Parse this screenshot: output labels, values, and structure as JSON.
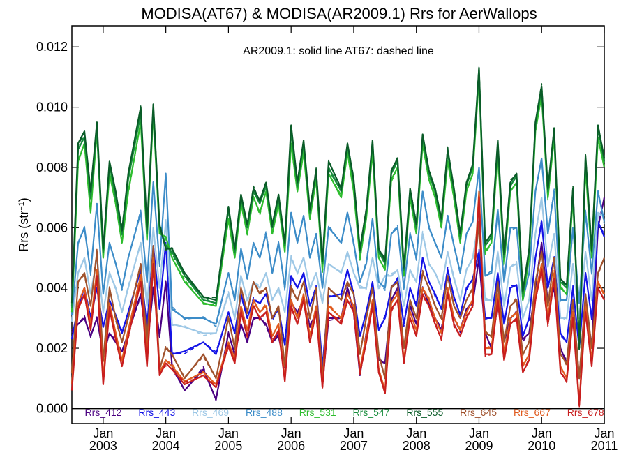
{
  "chart_data": {
    "type": "line",
    "title": "MODISA(AT67) & MODISA(AR2009.1)  Rrs for AerWallops",
    "ylabel_base": "Rrs (str",
    "ylabel_sup": "−1",
    "ylabel_close": ")",
    "annotation": "AR2009.1: solid line   AT67: dashed line",
    "xlim": [
      2002.5,
      2011.0
    ],
    "ylim": [
      -0.0005,
      0.0127
    ],
    "yticks": [
      0.0,
      0.002,
      0.004,
      0.006,
      0.008,
      0.01,
      0.012
    ],
    "ytick_labels": [
      "0.000",
      "0.002",
      "0.004",
      "0.006",
      "0.008",
      "0.010",
      "0.012"
    ],
    "xticks": [
      {
        "value": 2003,
        "line1": "Jan",
        "line2": "2003"
      },
      {
        "value": 2004,
        "line1": "Jan",
        "line2": "2004"
      },
      {
        "value": 2005,
        "line1": "Jan",
        "line2": "2005"
      },
      {
        "value": 2006,
        "line1": "Jan",
        "line2": "2006"
      },
      {
        "value": 2007,
        "line1": "Jan",
        "line2": "2007"
      },
      {
        "value": 2008,
        "line1": "Jan",
        "line2": "2008"
      },
      {
        "value": 2009,
        "line1": "Jan",
        "line2": "2009"
      },
      {
        "value": 2010,
        "line1": "Jan",
        "line2": "2010"
      },
      {
        "value": 2011,
        "line1": "Jan",
        "line2": "2011"
      }
    ],
    "zero_line": 0.0,
    "x": [
      2002.5,
      2002.6,
      2002.7,
      2002.8,
      2002.9,
      2003.0,
      2003.1,
      2003.2,
      2003.3,
      2003.4,
      2003.6,
      2003.7,
      2003.8,
      2003.9,
      2004.0,
      2004.1,
      2004.3,
      2004.6,
      2004.8,
      2005.0,
      2005.1,
      2005.2,
      2005.3,
      2005.4,
      2005.5,
      2005.6,
      2005.7,
      2005.8,
      2005.9,
      2006.0,
      2006.1,
      2006.2,
      2006.3,
      2006.4,
      2006.5,
      2006.6,
      2006.8,
      2006.9,
      2007.0,
      2007.1,
      2007.2,
      2007.3,
      2007.4,
      2007.5,
      2007.6,
      2007.7,
      2007.8,
      2007.9,
      2008.0,
      2008.1,
      2008.2,
      2008.3,
      2008.4,
      2008.5,
      2008.6,
      2008.7,
      2008.8,
      2008.9,
      2009.0,
      2009.1,
      2009.2,
      2009.3,
      2009.4,
      2009.5,
      2009.6,
      2009.7,
      2009.8,
      2009.9,
      2010.0,
      2010.1,
      2010.2,
      2010.3,
      2010.4,
      2010.5,
      2010.6,
      2010.7,
      2010.8,
      2010.9,
      2011.0
    ],
    "series": [
      {
        "name": "Rrs_412",
        "color": "#4B0082",
        "values": [
          0.0026,
          0.0028,
          0.003,
          0.0024,
          0.003,
          0.0018,
          0.0025,
          0.0022,
          0.0019,
          0.0025,
          0.0038,
          0.002,
          0.004,
          0.0024,
          0.0042,
          0.0014,
          0.0006,
          0.0013,
          0.0003,
          0.0025,
          0.0018,
          0.0028,
          0.0022,
          0.003,
          0.003,
          0.0028,
          0.0022,
          0.0024,
          0.0014,
          0.0035,
          0.0032,
          0.0036,
          0.0027,
          0.0032,
          0.0008,
          0.003,
          0.003,
          0.004,
          0.0032,
          0.0011,
          0.0025,
          0.0035,
          0.0016,
          0.0015,
          0.0036,
          0.004,
          0.002,
          0.0034,
          0.0028,
          0.004,
          0.0035,
          0.003,
          0.0026,
          0.0039,
          0.003,
          0.0026,
          0.0033,
          0.0035,
          0.005,
          0.0025,
          0.002,
          0.0035,
          0.0022,
          0.003,
          0.0032,
          0.0023,
          0.0025,
          0.004,
          0.0055,
          0.0035,
          0.004,
          0.002,
          0.0015,
          0.0032,
          0.001,
          0.0035,
          0.002,
          0.006,
          0.007
        ]
      },
      {
        "name": "Rrs_443",
        "color": "#1414E6",
        "values": [
          0.0023,
          0.0034,
          0.004,
          0.003,
          0.004,
          0.0027,
          0.0036,
          0.0031,
          0.0025,
          0.0032,
          0.0046,
          0.0027,
          0.0054,
          0.0033,
          0.0055,
          0.0018,
          0.0019,
          0.0022,
          0.0018,
          0.0032,
          0.0025,
          0.0038,
          0.003,
          0.0036,
          0.0035,
          0.0038,
          0.003,
          0.0033,
          0.0021,
          0.0044,
          0.004,
          0.0045,
          0.0034,
          0.004,
          0.0014,
          0.0037,
          0.0038,
          0.0046,
          0.0038,
          0.0024,
          0.0032,
          0.0042,
          0.0026,
          0.003,
          0.004,
          0.0043,
          0.0028,
          0.004,
          0.0034,
          0.005,
          0.0042,
          0.0038,
          0.0033,
          0.0046,
          0.0037,
          0.0031,
          0.004,
          0.0043,
          0.0052,
          0.003,
          0.003,
          0.0045,
          0.0028,
          0.004,
          0.0041,
          0.0024,
          0.003,
          0.005,
          0.0062,
          0.004,
          0.005,
          0.0025,
          0.0022,
          0.004,
          0.002,
          0.0045,
          0.003,
          0.0062,
          0.0057
        ]
      },
      {
        "name": "Rrs_469",
        "color": "#9EC8E6",
        "values": [
          0.0029,
          0.0045,
          0.005,
          0.0038,
          0.005,
          0.0032,
          0.0045,
          0.004,
          0.0032,
          0.004,
          0.0055,
          0.0034,
          0.006,
          0.004,
          0.0062,
          0.0028,
          0.0027,
          0.0025,
          0.0025,
          0.0038,
          0.003,
          0.0044,
          0.0036,
          0.0042,
          0.004,
          0.0045,
          0.0036,
          0.004,
          0.0032,
          0.005,
          0.0045,
          0.005,
          0.004,
          0.0045,
          0.0035,
          0.0048,
          0.0045,
          0.0052,
          0.0045,
          0.004,
          0.004,
          0.005,
          0.004,
          0.0044,
          0.0044,
          0.0046,
          0.0034,
          0.0046,
          0.0042,
          0.0058,
          0.0048,
          0.0045,
          0.004,
          0.0052,
          0.0043,
          0.0036,
          0.0046,
          0.005,
          0.0063,
          0.0036,
          0.0036,
          0.0052,
          0.0034,
          0.0047,
          0.0048,
          0.003,
          0.0036,
          0.0058,
          0.007,
          0.0047,
          0.0058,
          0.003,
          0.003,
          0.0048,
          0.003,
          0.0052,
          0.0036,
          0.0065,
          0.0064
        ]
      },
      {
        "name": "Rrs_488",
        "color": "#3C8CC8",
        "values": [
          0.0031,
          0.0055,
          0.006,
          0.0045,
          0.0068,
          0.0038,
          0.0055,
          0.0048,
          0.004,
          0.005,
          0.0065,
          0.0042,
          0.0075,
          0.0048,
          0.0078,
          0.0033,
          0.003,
          0.003,
          0.0028,
          0.0045,
          0.0036,
          0.0053,
          0.0043,
          0.0055,
          0.005,
          0.0058,
          0.0045,
          0.0055,
          0.004,
          0.0065,
          0.0055,
          0.0064,
          0.005,
          0.0058,
          0.004,
          0.006,
          0.0055,
          0.0065,
          0.0055,
          0.0042,
          0.0048,
          0.0063,
          0.0042,
          0.004,
          0.0058,
          0.006,
          0.004,
          0.0058,
          0.005,
          0.0072,
          0.006,
          0.0055,
          0.005,
          0.0064,
          0.0054,
          0.0045,
          0.0058,
          0.0062,
          0.008,
          0.0044,
          0.0045,
          0.0066,
          0.0042,
          0.006,
          0.006,
          0.0036,
          0.0045,
          0.0072,
          0.0083,
          0.0058,
          0.0072,
          0.0036,
          0.0036,
          0.006,
          0.0035,
          0.0065,
          0.0045,
          0.0072,
          0.0062
        ]
      },
      {
        "name": "Rrs_531",
        "color": "#2EBD2E",
        "values": [
          0.0032,
          0.0082,
          0.0088,
          0.0065,
          0.0092,
          0.005,
          0.0078,
          0.0068,
          0.0055,
          0.0072,
          0.0095,
          0.0056,
          0.0098,
          0.0058,
          0.0057,
          0.005,
          0.0042,
          0.0035,
          0.0034,
          0.0063,
          0.005,
          0.0068,
          0.0058,
          0.007,
          0.0065,
          0.0072,
          0.0058,
          0.0068,
          0.0052,
          0.0088,
          0.0072,
          0.0085,
          0.0063,
          0.0076,
          0.0046,
          0.0078,
          0.007,
          0.0085,
          0.0072,
          0.005,
          0.0063,
          0.0085,
          0.005,
          0.0046,
          0.0076,
          0.008,
          0.0044,
          0.007,
          0.0058,
          0.0088,
          0.0076,
          0.007,
          0.006,
          0.0082,
          0.007,
          0.0055,
          0.0072,
          0.0078,
          0.011,
          0.0052,
          0.0055,
          0.0085,
          0.0048,
          0.0072,
          0.0075,
          0.0036,
          0.005,
          0.0092,
          0.0104,
          0.007,
          0.009,
          0.004,
          0.0038,
          0.007,
          0.002,
          0.008,
          0.005,
          0.009,
          0.008
        ]
      },
      {
        "name": "Rrs_547",
        "color": "#178C3C",
        "values": [
          0.0034,
          0.0086,
          0.009,
          0.007,
          0.0093,
          0.0052,
          0.0081,
          0.007,
          0.0058,
          0.0076,
          0.0098,
          0.0058,
          0.01,
          0.006,
          0.0054,
          0.0052,
          0.0044,
          0.0036,
          0.0035,
          0.0066,
          0.0052,
          0.007,
          0.006,
          0.0072,
          0.0068,
          0.0074,
          0.006,
          0.007,
          0.0054,
          0.0092,
          0.0074,
          0.0088,
          0.0065,
          0.0078,
          0.0048,
          0.008,
          0.0072,
          0.0087,
          0.0075,
          0.0052,
          0.0065,
          0.0088,
          0.0052,
          0.0048,
          0.0078,
          0.0082,
          0.0046,
          0.0072,
          0.006,
          0.009,
          0.0078,
          0.0072,
          0.0062,
          0.0085,
          0.0072,
          0.0057,
          0.0074,
          0.008,
          0.0112,
          0.0054,
          0.0057,
          0.0088,
          0.005,
          0.0074,
          0.0077,
          0.0038,
          0.0052,
          0.0094,
          0.0106,
          0.0072,
          0.0092,
          0.0042,
          0.004,
          0.0072,
          0.0021,
          0.0083,
          0.0052,
          0.0093,
          0.0082
        ]
      },
      {
        "name": "Rrs_555",
        "color": "#0A5C28",
        "values": [
          0.0035,
          0.0088,
          0.0092,
          0.0072,
          0.0095,
          0.0053,
          0.0082,
          0.0072,
          0.0059,
          0.0078,
          0.01,
          0.006,
          0.0101,
          0.0061,
          0.0053,
          0.0053,
          0.0045,
          0.0037,
          0.0036,
          0.0067,
          0.0053,
          0.0071,
          0.0061,
          0.0073,
          0.0069,
          0.0075,
          0.0061,
          0.0071,
          0.0055,
          0.0094,
          0.0075,
          0.0089,
          0.0066,
          0.0079,
          0.0049,
          0.0082,
          0.0073,
          0.0088,
          0.0076,
          0.0053,
          0.0066,
          0.0089,
          0.0053,
          0.0049,
          0.0079,
          0.0083,
          0.0047,
          0.0073,
          0.0061,
          0.0091,
          0.0079,
          0.0073,
          0.0063,
          0.0086,
          0.0073,
          0.0058,
          0.0075,
          0.0081,
          0.0113,
          0.0055,
          0.0058,
          0.0089,
          0.0051,
          0.0075,
          0.0078,
          0.0039,
          0.0053,
          0.0095,
          0.0107,
          0.0073,
          0.0093,
          0.0043,
          0.0041,
          0.0073,
          0.002,
          0.0084,
          0.0053,
          0.0094,
          0.0083
        ]
      },
      {
        "name": "Rrs_645",
        "color": "#A0522D",
        "values": [
          0.0012,
          0.0042,
          0.0045,
          0.0034,
          0.0052,
          0.0016,
          0.004,
          0.003,
          0.0022,
          0.003,
          0.0048,
          0.0022,
          0.0054,
          0.0013,
          0.002,
          0.0018,
          0.001,
          0.0018,
          0.001,
          0.003,
          0.002,
          0.004,
          0.0032,
          0.0042,
          0.0038,
          0.004,
          0.003,
          0.0034,
          0.0014,
          0.004,
          0.0036,
          0.0042,
          0.003,
          0.004,
          0.001,
          0.004,
          0.0036,
          0.0042,
          0.0038,
          0.0018,
          0.003,
          0.004,
          0.0018,
          0.001,
          0.004,
          0.0042,
          0.002,
          0.0036,
          0.003,
          0.0045,
          0.004,
          0.0034,
          0.003,
          0.0044,
          0.0034,
          0.003,
          0.0036,
          0.004,
          0.0062,
          0.0025,
          0.0024,
          0.0042,
          0.0022,
          0.0034,
          0.0036,
          0.0018,
          0.0022,
          0.0042,
          0.0052,
          0.0034,
          0.005,
          0.0018,
          0.0015,
          0.0036,
          0.001,
          0.0038,
          0.002,
          0.0045,
          0.005
        ]
      },
      {
        "name": "Rrs_667",
        "color": "#E05A1E",
        "values": [
          0.0008,
          0.0035,
          0.004,
          0.0028,
          0.0046,
          0.001,
          0.0035,
          0.0025,
          0.0016,
          0.0026,
          0.0044,
          0.0016,
          0.005,
          0.0012,
          0.0016,
          0.0014,
          0.0009,
          0.0012,
          0.0008,
          0.0022,
          0.0016,
          0.0034,
          0.0026,
          0.0036,
          0.0032,
          0.0034,
          0.0024,
          0.0028,
          0.001,
          0.0036,
          0.003,
          0.0038,
          0.0024,
          0.0034,
          0.0008,
          0.0034,
          0.003,
          0.0038,
          0.0034,
          0.0013,
          0.0024,
          0.0036,
          0.0013,
          0.0006,
          0.0035,
          0.0038,
          0.0016,
          0.0032,
          0.0026,
          0.004,
          0.0036,
          0.003,
          0.0025,
          0.004,
          0.003,
          0.0026,
          0.0032,
          0.0036,
          0.0072,
          0.002,
          0.002,
          0.0038,
          0.0018,
          0.003,
          0.0032,
          0.0014,
          0.0018,
          0.0038,
          0.0048,
          0.003,
          0.0045,
          0.0014,
          0.001,
          0.0032,
          0.0002,
          0.0034,
          0.0016,
          0.0042,
          0.0038
        ]
      },
      {
        "name": "Rrs_678",
        "color": "#C81E1E",
        "values": [
          0.0006,
          0.0033,
          0.0038,
          0.0026,
          0.0044,
          0.0008,
          0.0033,
          0.0023,
          0.0014,
          0.0024,
          0.0042,
          0.0014,
          0.0048,
          0.0011,
          0.0015,
          0.0013,
          0.0008,
          0.0011,
          0.0007,
          0.0021,
          0.0015,
          0.0032,
          0.0024,
          0.0034,
          0.003,
          0.0032,
          0.0022,
          0.0026,
          0.0009,
          0.0034,
          0.0028,
          0.0036,
          0.0022,
          0.0032,
          0.0007,
          0.0032,
          0.0028,
          0.0036,
          0.0032,
          0.0012,
          0.0022,
          0.0034,
          0.0012,
          0.0005,
          0.0033,
          0.0036,
          0.0015,
          0.003,
          0.0024,
          0.0038,
          0.0034,
          0.0028,
          0.0023,
          0.0038,
          0.0028,
          0.0024,
          0.003,
          0.0034,
          0.007,
          0.0018,
          0.0018,
          0.0036,
          0.0016,
          0.0028,
          0.003,
          0.0012,
          0.0016,
          0.0036,
          0.0046,
          0.0028,
          0.0043,
          0.0012,
          0.0009,
          0.003,
          0.0001,
          0.0032,
          0.0014,
          0.004,
          0.0036
        ]
      }
    ],
    "legend_position": "bottom, inside plot",
    "grid": false,
    "line_styles": {
      "AR2009.1": "solid",
      "AT67": "dashed"
    }
  }
}
